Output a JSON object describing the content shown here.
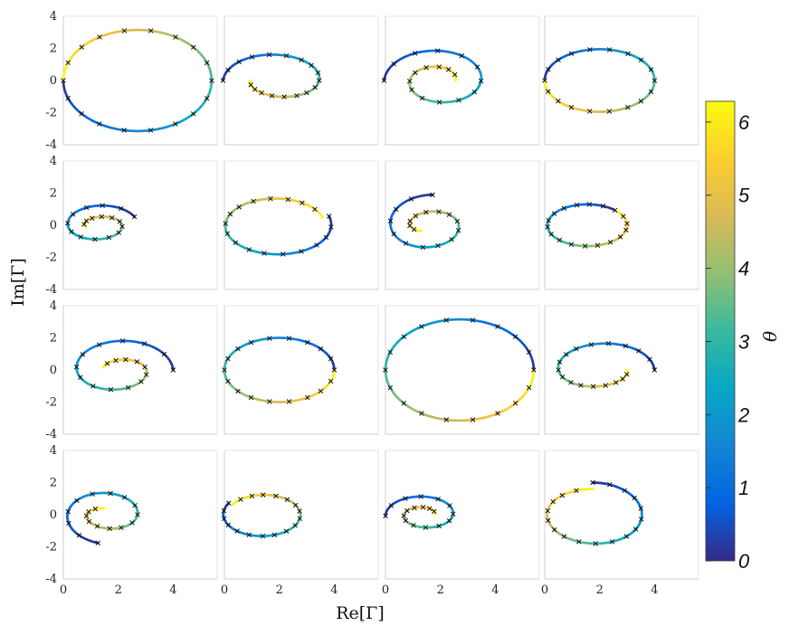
{
  "chart_data": {
    "type": "line",
    "title": "",
    "xlabel": "Re[Γ]",
    "ylabel": "Im[Γ]",
    "xlim": [
      0,
      5.6
    ],
    "ylim": [
      -4,
      4
    ],
    "x_ticks": [
      "0",
      "2",
      "4"
    ],
    "y_ticks": [
      "4",
      "2",
      "0",
      "-2",
      "-4"
    ],
    "grid": false,
    "layout": "4x4 grid of subplots sharing axes",
    "colormap": "parula",
    "colorbar": {
      "label": "θ",
      "min": 0,
      "max": 6.283,
      "ticks": [
        "0",
        "1",
        "2",
        "3",
        "4",
        "5",
        "6"
      ]
    },
    "markers": "black x markers along each curve",
    "panels": [
      {
        "id": "r1c1",
        "shape": "circle",
        "center": [
          2.7,
          0
        ],
        "rx": 2.7,
        "ry": 3.15,
        "theta_start": 3.14,
        "direction": 1
      },
      {
        "id": "r1c2",
        "shape": "spiral",
        "center": [
          1.95,
          0
        ],
        "rx0": 2.0,
        "ry0": 1.9,
        "rx1": 1.0,
        "ry1": 0.7,
        "span": 6.28,
        "theta_start": 3.14,
        "direction": -1
      },
      {
        "id": "r1c3",
        "shape": "spiral",
        "center": [
          1.95,
          0
        ],
        "rx0": 2.0,
        "ry0": 2.1,
        "rx1": 0.6,
        "ry1": 0.6,
        "span": 9.4,
        "theta_start": 3.14,
        "direction": -1
      },
      {
        "id": "r1c4",
        "shape": "circle",
        "center": [
          2.0,
          0
        ],
        "rx": 2.0,
        "ry": 1.95,
        "theta_start": 3.14,
        "direction": -1
      },
      {
        "id": "r2c1",
        "shape": "spiral",
        "center": [
          1.3,
          0
        ],
        "rx0": 1.4,
        "ry0": 1.35,
        "rx1": 0.5,
        "ry1": 0.3,
        "span": 9.4,
        "theta_start": 0.4,
        "direction": 1
      },
      {
        "id": "r2c2",
        "shape": "spiral",
        "center": [
          1.9,
          0
        ],
        "rx0": 2.0,
        "ry0": 1.9,
        "rx1": 1.75,
        "ry1": 1.6,
        "span": 6.28,
        "theta_start": 0.3,
        "direction": -1
      },
      {
        "id": "r2c3",
        "shape": "spiral",
        "center": [
          1.6,
          0
        ],
        "rx0": 1.6,
        "ry0": 1.9,
        "rx1": 0.6,
        "ry1": 0.4,
        "span": 9.0,
        "theta_start": 1.5,
        "direction": 1
      },
      {
        "id": "r2c4",
        "shape": "circle",
        "center": [
          1.55,
          0
        ],
        "rx": 1.45,
        "ry": 1.3,
        "theta_start": 0.8,
        "direction": 1
      },
      {
        "id": "r3c1",
        "shape": "spiral",
        "center": [
          2.0,
          0
        ],
        "rx0": 2.0,
        "ry0": 2.1,
        "rx1": 0.6,
        "ry1": 0.4,
        "span": 9.0,
        "theta_start": 0.0,
        "direction": 1
      },
      {
        "id": "r3c2",
        "shape": "circle",
        "center": [
          2.0,
          0
        ],
        "rx": 2.0,
        "ry": 2.0,
        "theta_start": 0.0,
        "direction": 1
      },
      {
        "id": "r3c3",
        "shape": "circle",
        "center": [
          2.7,
          0
        ],
        "rx": 2.7,
        "ry": 3.15,
        "theta_start": 0.0,
        "direction": 1
      },
      {
        "id": "r3c4",
        "shape": "spiral",
        "center": [
          2.0,
          0
        ],
        "rx0": 2.0,
        "ry0": 1.95,
        "rx1": 1.0,
        "ry1": 0.7,
        "span": 6.28,
        "theta_start": 0.0,
        "direction": 1
      },
      {
        "id": "r4c1",
        "shape": "spiral",
        "center": [
          1.6,
          0
        ],
        "rx0": 1.6,
        "ry0": 1.8,
        "rx1": 0.6,
        "ry1": 0.4,
        "span": 9.0,
        "theta_start": 4.5,
        "direction": -1
      },
      {
        "id": "r4c2",
        "shape": "spiral",
        "center": [
          1.4,
          0
        ],
        "rx0": 1.45,
        "ry0": 1.4,
        "rx1": 1.3,
        "ry1": 1.2,
        "span": 6.28,
        "theta_start": 2.6,
        "direction": 1
      },
      {
        "id": "r4c3",
        "shape": "spiral",
        "center": [
          1.4,
          0
        ],
        "rx0": 1.4,
        "ry0": 1.3,
        "rx1": 0.4,
        "ry1": 0.3,
        "span": 9.4,
        "theta_start": 3.2,
        "direction": -1
      },
      {
        "id": "r4c4",
        "shape": "spiral",
        "center": [
          1.8,
          0
        ],
        "rx0": 1.75,
        "ry0": 2.0,
        "rx1": 1.7,
        "ry1": 1.6,
        "span": 6.28,
        "theta_start": 1.6,
        "direction": -1
      }
    ]
  }
}
